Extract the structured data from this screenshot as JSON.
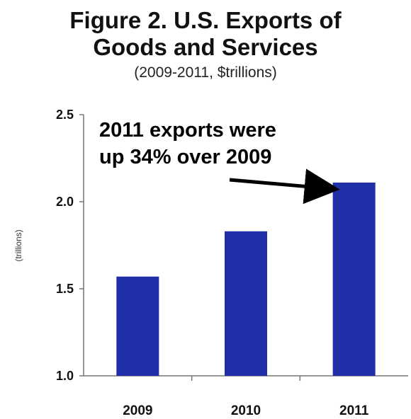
{
  "chart_data": {
    "type": "bar",
    "title": [
      "Figure 2. U.S. Exports of",
      "Goods and Services"
    ],
    "subtitle": "(2009-2011, $trillions)",
    "xlabel": "",
    "ylabel": "(trillions)",
    "categories": [
      "2009",
      "2010",
      "2011"
    ],
    "values": [
      1.57,
      1.83,
      2.11
    ],
    "ylim": [
      1.0,
      2.5
    ],
    "yticks": [
      "1.0",
      "1.5",
      "2.0",
      "2.5"
    ],
    "bar_color": "#1f2fa8",
    "grid": false,
    "annotation": {
      "lines": [
        "2011 exports were",
        "up 34% over 2009"
      ],
      "points_to": "2011"
    }
  }
}
